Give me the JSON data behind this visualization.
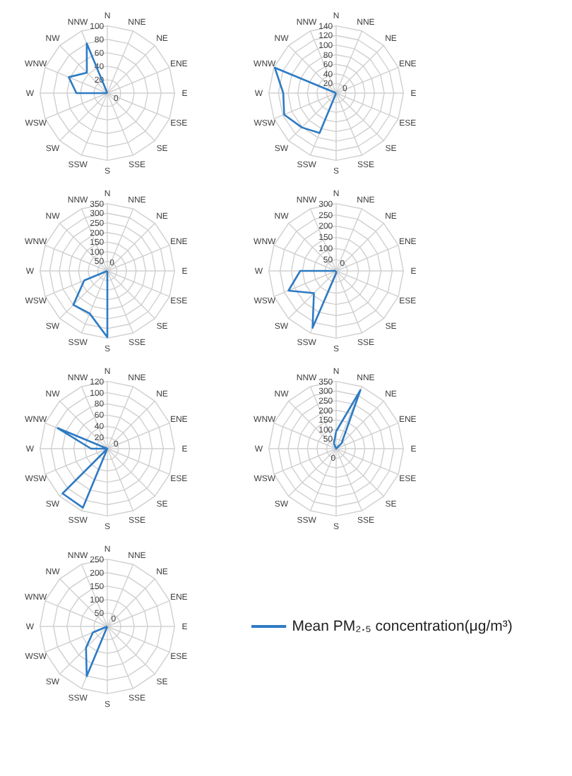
{
  "chart_data": [
    {
      "type": "radar",
      "categories": [
        "N",
        "NNE",
        "NE",
        "ENE",
        "E",
        "ESE",
        "SE",
        "SSE",
        "S",
        "SSW",
        "SW",
        "WSW",
        "W",
        "WNW",
        "NW",
        "NNW"
      ],
      "ylim": [
        0,
        100
      ],
      "yticks": [
        0,
        20,
        40,
        60,
        80,
        100
      ],
      "grid": true,
      "series": [
        {
          "color": "#2e7bc4",
          "values": [
            0,
            0,
            0,
            0,
            0,
            0,
            0,
            0,
            0,
            0,
            0,
            0,
            46,
            62,
            43,
            80
          ]
        }
      ]
    },
    {
      "type": "radar",
      "categories": [
        "N",
        "NNE",
        "NE",
        "ENE",
        "E",
        "ESE",
        "SE",
        "SSE",
        "S",
        "SSW",
        "SW",
        "WSW",
        "W",
        "WNW",
        "NW",
        "NNW"
      ],
      "ylim": [
        0,
        140
      ],
      "yticks": [
        0,
        20,
        40,
        60,
        80,
        100,
        120,
        140
      ],
      "grid": true,
      "series": [
        {
          "color": "#2e7bc4",
          "values": [
            0,
            0,
            0,
            0,
            0,
            0,
            0,
            0,
            0,
            90,
            101,
            117,
            110,
            138,
            0,
            0
          ]
        }
      ]
    },
    {
      "type": "radar",
      "categories": [
        "N",
        "NNE",
        "NE",
        "ENE",
        "E",
        "ESE",
        "SE",
        "SSE",
        "S",
        "SSW",
        "SW",
        "WSW",
        "W",
        "WNW",
        "NW",
        "NNW"
      ],
      "ylim": [
        0,
        350
      ],
      "yticks": [
        0,
        50,
        100,
        150,
        200,
        250,
        300,
        350
      ],
      "grid": true,
      "series": [
        {
          "color": "#2e7bc4",
          "values": [
            0,
            0,
            0,
            0,
            0,
            0,
            0,
            0,
            345,
            240,
            250,
            130,
            0,
            0,
            0,
            0
          ]
        }
      ]
    },
    {
      "type": "radar",
      "categories": [
        "N",
        "NNE",
        "NE",
        "ENE",
        "E",
        "ESE",
        "SE",
        "SSE",
        "S",
        "SSW",
        "SW",
        "WSW",
        "W",
        "WNW",
        "NW",
        "NNW"
      ],
      "ylim": [
        0,
        300
      ],
      "yticks": [
        0,
        50,
        100,
        150,
        200,
        250,
        300
      ],
      "grid": true,
      "series": [
        {
          "color": "#2e7bc4",
          "values": [
            0,
            0,
            0,
            0,
            0,
            0,
            0,
            0,
            10,
            275,
            140,
            230,
            160,
            0,
            0,
            0
          ]
        }
      ]
    },
    {
      "type": "radar",
      "categories": [
        "N",
        "NNE",
        "NE",
        "ENE",
        "E",
        "ESE",
        "SE",
        "SSE",
        "S",
        "SSW",
        "SW",
        "WSW",
        "W",
        "WNW",
        "NW",
        "NNW"
      ],
      "ylim": [
        0,
        120
      ],
      "yticks": [
        0,
        20,
        40,
        60,
        80,
        100,
        120
      ],
      "grid": true,
      "series": [
        {
          "color": "#2e7bc4",
          "values": [
            0,
            0,
            0,
            0,
            0,
            0,
            0,
            0,
            0,
            114,
            113,
            0,
            29,
            96,
            0,
            0
          ]
        }
      ]
    },
    {
      "type": "radar",
      "categories": [
        "N",
        "NNE",
        "NE",
        "ENE",
        "E",
        "ESE",
        "SE",
        "SSE",
        "S",
        "SSW",
        "SW",
        "WSW",
        "W",
        "WNW",
        "NW",
        "NNW"
      ],
      "ylim": [
        0,
        350
      ],
      "yticks": [
        0,
        50,
        100,
        150,
        200,
        250,
        300,
        350
      ],
      "grid": true,
      "series": [
        {
          "color": "#2e7bc4",
          "values": [
            90,
            330,
            40,
            0,
            0,
            0,
            0,
            0,
            0,
            0,
            0,
            0,
            0,
            0,
            0,
            30
          ]
        }
      ]
    },
    {
      "type": "radar",
      "categories": [
        "N",
        "NNE",
        "NE",
        "ENE",
        "E",
        "ESE",
        "SE",
        "SSE",
        "S",
        "SSW",
        "SW",
        "WSW",
        "W",
        "WNW",
        "NW",
        "NNW"
      ],
      "ylim": [
        0,
        250
      ],
      "yticks": [
        0,
        50,
        100,
        150,
        200,
        250
      ],
      "grid": true,
      "legend": "right",
      "series": [
        {
          "name": "Mean PM₂.₅ concentration(μg/m³)",
          "color": "#2e7bc4",
          "values": [
            0,
            0,
            0,
            0,
            0,
            0,
            0,
            0,
            0,
            200,
            112,
            58,
            0,
            0,
            0,
            0
          ]
        }
      ]
    }
  ]
}
